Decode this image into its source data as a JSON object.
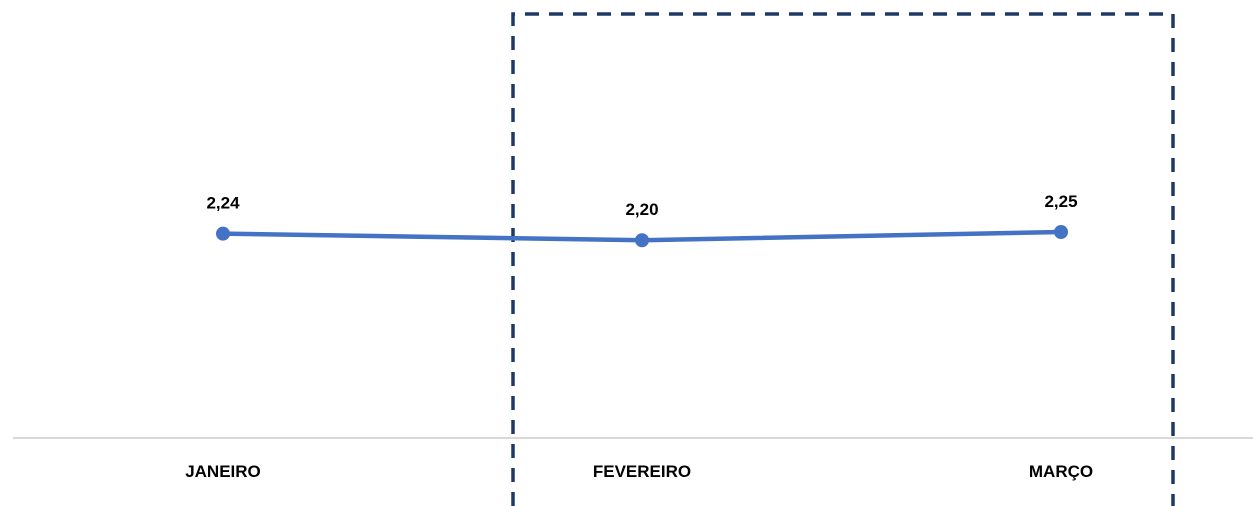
{
  "chart_data": {
    "type": "line",
    "categories": [
      "JANEIRO",
      "FEVEREIRO",
      "MARÇO"
    ],
    "series": [
      {
        "values": [
          2.24,
          2.2,
          2.25
        ],
        "data_labels": [
          "2,24",
          "2,20",
          "2,25"
        ],
        "color": "#4472C4"
      }
    ],
    "ylim": [
      1.0,
      3.5
    ],
    "grid": false,
    "legend": "none",
    "highlight": {
      "categories": [
        "FEVEREIRO",
        "MARÇO"
      ],
      "style": "dashed",
      "color": "#1F3864"
    }
  },
  "colors": {
    "axis": "#D9D9D9",
    "series": "#4472C4",
    "highlight": "#1F3864"
  }
}
